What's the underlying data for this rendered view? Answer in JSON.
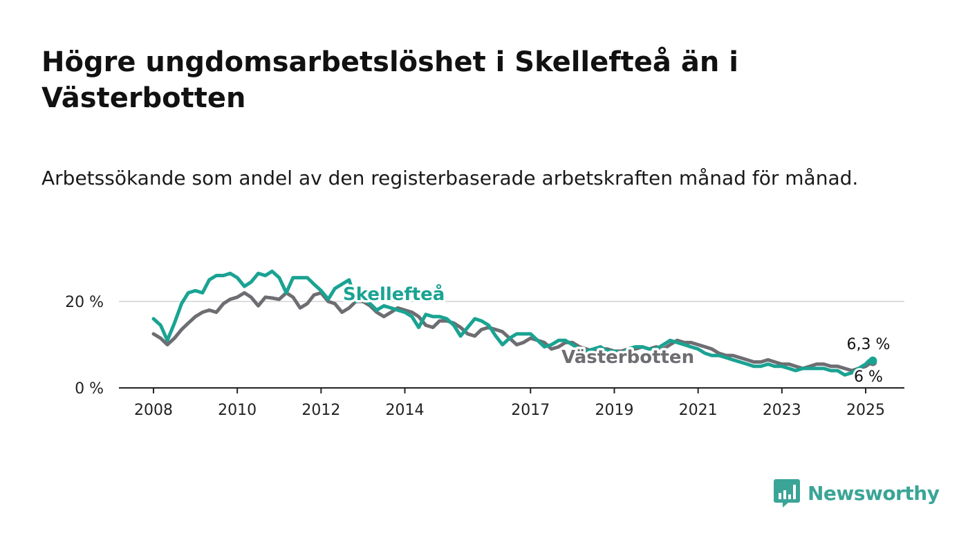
{
  "title": "Högre ungdomsarbetslöshet i Skellefteå än i Västerbotten",
  "subtitle": "Arbetssökande som andel av den registerbaserade arbetskraften månad för månad.",
  "brand": {
    "name": "Newsworthy",
    "logo_icon": "bar-chart-speech-bubble-icon",
    "color": "#3aa597"
  },
  "chart_data": {
    "type": "line",
    "x_unit": "year",
    "y_unit": "%",
    "xlim": [
      2007.83,
      2025.75
    ],
    "ylim": [
      0,
      28
    ],
    "x_ticks": [
      {
        "value": 2008,
        "label": "2008"
      },
      {
        "value": 2010,
        "label": "2010"
      },
      {
        "value": 2012,
        "label": "2012"
      },
      {
        "value": 2014,
        "label": "2014"
      },
      {
        "value": 2017,
        "label": "2017"
      },
      {
        "value": 2019,
        "label": "2019"
      },
      {
        "value": 2021,
        "label": "2021"
      },
      {
        "value": 2023,
        "label": "2023"
      },
      {
        "value": 2025,
        "label": "2025"
      }
    ],
    "y_ticks": [
      {
        "value": 0,
        "label": "0 %"
      },
      {
        "value": 20,
        "label": "20 %"
      }
    ],
    "grid": true,
    "series": [
      {
        "name": "Västerbotten",
        "color": "#6d6d72",
        "end_label": "6 %",
        "x": [
          2008.0,
          2008.17,
          2008.33,
          2008.5,
          2008.67,
          2008.83,
          2009.0,
          2009.17,
          2009.33,
          2009.5,
          2009.67,
          2009.83,
          2010.0,
          2010.17,
          2010.33,
          2010.5,
          2010.67,
          2010.83,
          2011.0,
          2011.17,
          2011.33,
          2011.5,
          2011.67,
          2011.83,
          2012.0,
          2012.17,
          2012.33,
          2012.5,
          2012.67,
          2012.83,
          2013.0,
          2013.17,
          2013.33,
          2013.5,
          2013.67,
          2013.83,
          2014.0,
          2014.17,
          2014.33,
          2014.5,
          2014.67,
          2014.83,
          2015.0,
          2015.17,
          2015.33,
          2015.5,
          2015.67,
          2015.83,
          2016.0,
          2016.17,
          2016.33,
          2016.5,
          2016.67,
          2016.83,
          2017.0,
          2017.17,
          2017.33,
          2017.5,
          2017.67,
          2017.83,
          2018.0,
          2018.17,
          2018.33,
          2018.5,
          2018.67,
          2018.83,
          2019.0,
          2019.17,
          2019.33,
          2019.5,
          2019.67,
          2019.83,
          2020.0,
          2020.17,
          2020.33,
          2020.5,
          2020.67,
          2020.83,
          2021.0,
          2021.17,
          2021.33,
          2021.5,
          2021.67,
          2021.83,
          2022.0,
          2022.17,
          2022.33,
          2022.5,
          2022.67,
          2022.83,
          2023.0,
          2023.17,
          2023.33,
          2023.5,
          2023.67,
          2023.83,
          2024.0,
          2024.17,
          2024.33,
          2024.5,
          2024.67,
          2024.83,
          2025.0,
          2025.08,
          2025.17
        ],
        "y": [
          12.5,
          11.5,
          10.0,
          11.5,
          13.5,
          15.0,
          16.5,
          17.5,
          18.0,
          17.5,
          19.5,
          20.5,
          21.0,
          22.0,
          21.0,
          19.0,
          21.0,
          20.8,
          20.5,
          22.0,
          21.0,
          18.5,
          19.5,
          21.5,
          22.0,
          20.0,
          19.5,
          17.5,
          18.5,
          20.0,
          20.0,
          19.0,
          17.5,
          16.5,
          17.5,
          18.5,
          18.0,
          17.5,
          16.5,
          14.5,
          14.0,
          15.5,
          15.5,
          15.0,
          14.0,
          12.5,
          12.0,
          13.5,
          14.0,
          13.5,
          13.0,
          11.5,
          10.0,
          10.5,
          11.5,
          11.0,
          10.5,
          9.0,
          9.5,
          10.5,
          10.5,
          9.5,
          9.0,
          8.5,
          9.0,
          9.0,
          8.5,
          8.5,
          9.0,
          9.0,
          9.5,
          9.0,
          9.5,
          9.0,
          10.0,
          11.0,
          10.5,
          10.5,
          10.0,
          9.5,
          9.0,
          8.0,
          7.5,
          7.5,
          7.0,
          6.5,
          6.0,
          6.0,
          6.5,
          6.0,
          5.5,
          5.5,
          5.0,
          4.5,
          5.0,
          5.5,
          5.5,
          5.0,
          5.0,
          4.5,
          4.0,
          4.5,
          5.0,
          5.5,
          6.0
        ]
      },
      {
        "name": "Skellefteå",
        "color": "#1aa392",
        "end_label": "6,3 %",
        "x": [
          2008.0,
          2008.17,
          2008.33,
          2008.5,
          2008.67,
          2008.83,
          2009.0,
          2009.17,
          2009.33,
          2009.5,
          2009.67,
          2009.83,
          2010.0,
          2010.17,
          2010.33,
          2010.5,
          2010.67,
          2010.83,
          2011.0,
          2011.17,
          2011.33,
          2011.5,
          2011.67,
          2011.83,
          2012.0,
          2012.17,
          2012.33,
          2012.5,
          2012.67,
          2012.83,
          2013.0,
          2013.17,
          2013.33,
          2013.5,
          2013.67,
          2013.83,
          2014.0,
          2014.17,
          2014.33,
          2014.5,
          2014.67,
          2014.83,
          2015.0,
          2015.17,
          2015.33,
          2015.5,
          2015.67,
          2015.83,
          2016.0,
          2016.17,
          2016.33,
          2016.5,
          2016.67,
          2016.83,
          2017.0,
          2017.17,
          2017.33,
          2017.5,
          2017.67,
          2017.83,
          2018.0,
          2018.17,
          2018.33,
          2018.5,
          2018.67,
          2018.83,
          2019.0,
          2019.17,
          2019.33,
          2019.5,
          2019.67,
          2019.83,
          2020.0,
          2020.17,
          2020.33,
          2020.5,
          2020.67,
          2020.83,
          2021.0,
          2021.17,
          2021.33,
          2021.5,
          2021.67,
          2021.83,
          2022.0,
          2022.17,
          2022.33,
          2022.5,
          2022.67,
          2022.83,
          2023.0,
          2023.17,
          2023.33,
          2023.5,
          2023.67,
          2023.83,
          2024.0,
          2024.17,
          2024.33,
          2024.5,
          2024.67,
          2024.83,
          2025.0,
          2025.08,
          2025.17
        ],
        "y": [
          16.0,
          14.5,
          11.0,
          15.0,
          19.5,
          22.0,
          22.5,
          22.0,
          25.0,
          26.0,
          26.0,
          26.5,
          25.5,
          23.5,
          24.5,
          26.5,
          26.0,
          27.0,
          25.5,
          22.0,
          25.5,
          25.5,
          25.5,
          24.0,
          22.5,
          20.5,
          23.0,
          24.0,
          25.0,
          20.0,
          20.5,
          19.5,
          18.0,
          19.0,
          18.5,
          18.0,
          17.5,
          16.5,
          14.0,
          17.0,
          16.5,
          16.5,
          16.0,
          14.5,
          12.0,
          14.0,
          16.0,
          15.5,
          14.5,
          12.0,
          10.0,
          11.5,
          12.5,
          12.5,
          12.5,
          11.0,
          9.5,
          10.0,
          11.0,
          11.0,
          10.0,
          9.0,
          8.5,
          9.0,
          9.5,
          8.5,
          8.5,
          8.0,
          9.0,
          9.5,
          9.5,
          9.0,
          9.0,
          10.0,
          11.0,
          10.5,
          10.0,
          9.5,
          9.0,
          8.0,
          7.5,
          7.5,
          7.0,
          6.5,
          6.0,
          5.5,
          5.0,
          5.0,
          5.5,
          5.0,
          5.0,
          4.5,
          4.0,
          4.5,
          4.5,
          4.5,
          4.5,
          4.0,
          4.0,
          3.0,
          3.5,
          4.5,
          5.5,
          6.3,
          6.3
        ]
      }
    ]
  }
}
